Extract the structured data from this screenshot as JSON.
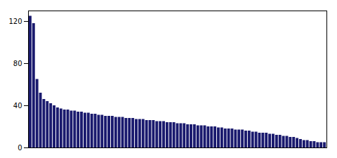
{
  "chart_data": {
    "type": "bar",
    "categories": [
      null,
      null,
      null,
      null,
      null,
      null,
      null,
      null,
      null,
      null,
      null,
      null,
      null,
      null,
      null,
      null,
      null,
      null,
      null,
      null,
      null,
      null,
      null,
      null,
      null,
      null,
      null,
      null,
      null,
      null,
      null,
      null,
      null,
      null,
      null,
      null,
      null,
      null,
      null,
      null,
      null,
      null,
      null,
      null,
      null,
      null,
      null,
      null,
      null,
      null,
      null,
      null,
      null,
      null,
      null,
      null,
      null,
      null,
      null,
      null,
      null,
      null,
      null,
      null,
      null,
      null,
      null,
      null,
      null,
      null,
      null,
      null,
      null,
      null,
      null,
      null,
      null,
      null,
      null,
      null,
      null,
      null,
      null,
      null,
      null,
      null,
      null
    ],
    "values": [
      125,
      118,
      65,
      52,
      46,
      44,
      42,
      40,
      38,
      37,
      36,
      36,
      35,
      35,
      34,
      34,
      33,
      33,
      32,
      32,
      31,
      31,
      30,
      30,
      30,
      29,
      29,
      29,
      28,
      28,
      28,
      27,
      27,
      27,
      26,
      26,
      26,
      25,
      25,
      25,
      24,
      24,
      24,
      23,
      23,
      23,
      22,
      22,
      22,
      21,
      21,
      21,
      20,
      20,
      20,
      19,
      19,
      18,
      18,
      18,
      17,
      17,
      17,
      16,
      16,
      15,
      15,
      14,
      14,
      14,
      13,
      13,
      12,
      12,
      11,
      11,
      10,
      10,
      9,
      8,
      7,
      7,
      6,
      6,
      5,
      5,
      5
    ],
    "color": "#1a1a6e",
    "ylim": [
      0,
      130
    ],
    "yticks": [
      0,
      40,
      80,
      120
    ],
    "grid": false,
    "tick_labels": "y"
  }
}
